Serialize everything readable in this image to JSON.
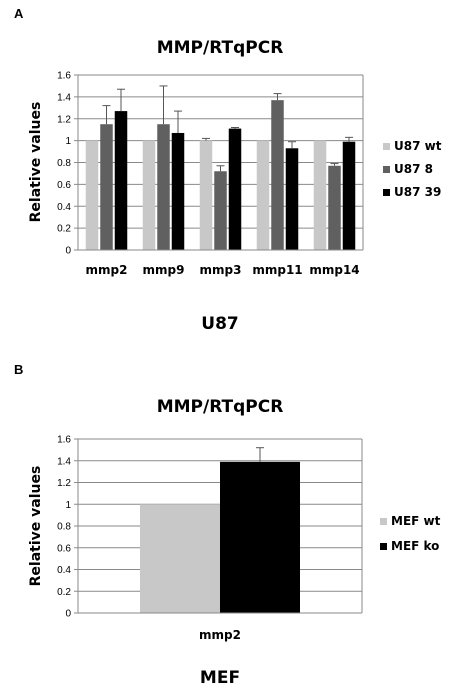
{
  "chart_data": [
    {
      "panel": "A",
      "type": "bar",
      "title": "MMP/RTqPCR",
      "ylabel": "Relative values",
      "xlabel": "",
      "caption": "U87",
      "ylim": [
        0,
        1.6
      ],
      "ystep": 0.2,
      "grid": true,
      "legend_position": "right",
      "categories": [
        "mmp2",
        "mmp9",
        "mmp3",
        "mmp11",
        "mmp14"
      ],
      "series": [
        {
          "name": "U87 wt",
          "color": "#c8c8c8",
          "values": [
            1.0,
            1.0,
            1.0,
            1.0,
            1.0
          ],
          "errors": [
            0,
            0,
            0.02,
            0,
            0
          ]
        },
        {
          "name": "U87 8",
          "color": "#606060",
          "values": [
            1.15,
            1.15,
            0.72,
            1.37,
            0.77
          ],
          "errors": [
            0.17,
            0.35,
            0.05,
            0.06,
            0.02
          ]
        },
        {
          "name": "U87 39",
          "color": "#000000",
          "values": [
            1.27,
            1.07,
            1.11,
            0.93,
            0.99
          ],
          "errors": [
            0.2,
            0.2,
            0.01,
            0.06,
            0.04
          ]
        }
      ]
    },
    {
      "panel": "B",
      "type": "bar",
      "title": "MMP/RTqPCR",
      "ylabel": "Relative values",
      "xlabel": "",
      "caption": "MEF",
      "ylim": [
        0,
        1.6
      ],
      "ystep": 0.2,
      "grid": true,
      "legend_position": "right",
      "categories": [
        "mmp2"
      ],
      "series": [
        {
          "name": "MEF wt",
          "color": "#c8c8c8",
          "values": [
            1.0
          ],
          "errors": [
            0
          ]
        },
        {
          "name": "MEF ko",
          "color": "#000000",
          "values": [
            1.39
          ],
          "errors": [
            0.13
          ]
        }
      ]
    }
  ]
}
